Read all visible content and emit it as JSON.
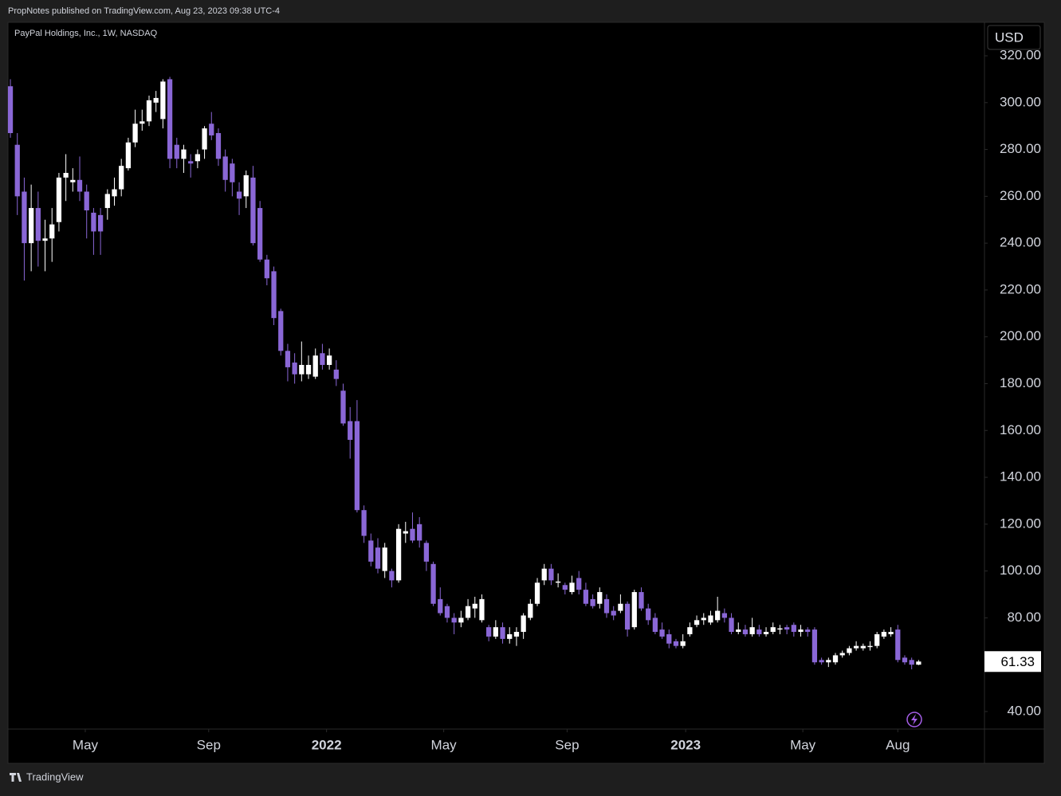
{
  "header": "PropNotes published on TradingView.com, Aug 23, 2023 09:38 UTC-4",
  "footer": "TradingView",
  "chart_data": {
    "type": "candlestick",
    "title": "PayPal Holdings, Inc., 1W, NASDAQ",
    "currency": "USD",
    "up_color": "#ffffff",
    "down_color": "#8a67d6",
    "open": [
      307,
      282,
      262,
      240,
      255,
      241,
      242,
      249,
      268,
      266,
      267,
      262,
      253,
      252,
      255,
      260,
      263,
      272,
      283,
      291,
      292,
      300,
      293,
      310,
      282,
      276,
      275,
      275,
      280,
      291,
      287,
      277,
      274,
      262,
      260,
      268,
      255,
      233,
      228,
      211,
      194,
      189,
      184,
      184,
      183,
      193,
      188,
      186,
      177,
      164,
      164,
      126,
      113,
      110,
      100,
      100,
      96,
      116,
      118,
      120,
      112,
      103,
      88,
      85,
      80,
      78,
      80,
      84,
      79,
      76,
      72,
      76,
      71,
      72,
      74,
      80,
      86,
      96,
      101,
      95,
      94,
      91,
      97,
      92,
      88,
      86,
      88,
      83,
      83,
      86,
      76,
      91,
      84,
      80,
      75,
      73,
      70,
      68,
      73,
      77,
      79,
      78,
      79,
      82,
      80,
      74,
      75,
      73,
      75,
      73,
      74,
      75,
      76,
      77,
      74,
      75,
      75,
      62,
      61,
      61,
      64,
      65,
      67,
      67,
      67.5,
      68,
      72,
      73,
      75,
      63,
      62,
      60
    ],
    "high": [
      310,
      287,
      268,
      265,
      262,
      250,
      255,
      270,
      278,
      272,
      277,
      265,
      255,
      255,
      263,
      268,
      276,
      285,
      297,
      297,
      303,
      305,
      310,
      311,
      285,
      282,
      278,
      280,
      290,
      296,
      289,
      280,
      276,
      266,
      271,
      273,
      258,
      235,
      230,
      212,
      197,
      193,
      198,
      192,
      195,
      197,
      195,
      190,
      180,
      170,
      173,
      128,
      116,
      114,
      112,
      101,
      120,
      121,
      125,
      123,
      113,
      104,
      93,
      86,
      82,
      83,
      88,
      89,
      90,
      77,
      79,
      78,
      76,
      76,
      82,
      88,
      97,
      103,
      103,
      99,
      95,
      98,
      100,
      95,
      90,
      93,
      90,
      85,
      90,
      87,
      92,
      93,
      86,
      82,
      78,
      75,
      71,
      73,
      78,
      81,
      82,
      83,
      89,
      84,
      82,
      78,
      77,
      80,
      77,
      76,
      78,
      77,
      77,
      78,
      77,
      76,
      76,
      63,
      63,
      65,
      66,
      68,
      70,
      69,
      70,
      74,
      75,
      76,
      77,
      64,
      63,
      62
    ],
    "low": [
      285,
      252,
      224,
      228,
      230,
      228,
      232,
      245,
      258,
      262,
      258,
      242,
      235,
      235,
      250,
      256,
      260,
      271,
      281,
      288,
      290,
      296,
      289,
      272,
      272,
      270,
      268,
      272,
      276,
      284,
      273,
      262,
      260,
      252,
      255,
      239,
      232,
      222,
      205,
      192,
      181,
      180,
      181,
      182,
      182,
      186,
      186,
      179,
      162,
      148,
      125,
      112,
      102,
      99,
      97,
      93,
      95,
      112,
      112,
      110,
      100,
      85,
      81,
      78,
      73,
      76,
      79,
      80,
      78,
      70,
      71,
      69,
      69,
      68,
      71,
      79,
      85,
      94,
      94,
      93,
      90,
      90,
      90,
      85,
      84,
      84,
      80,
      79,
      82,
      72,
      75,
      83,
      77,
      73,
      71,
      67,
      67,
      67,
      72,
      76,
      77,
      77,
      78,
      78,
      73,
      73,
      72,
      72,
      72,
      72,
      73,
      73,
      73,
      72,
      72,
      72,
      60,
      60,
      59,
      60,
      63,
      64,
      66,
      66,
      66,
      67,
      71,
      72,
      61,
      60,
      58,
      59.8
    ],
    "close": [
      287,
      260,
      240,
      255,
      241,
      242,
      248,
      268,
      270,
      267,
      262,
      254,
      245,
      245,
      261,
      263,
      273,
      283,
      291,
      292,
      301,
      302,
      309,
      276,
      276,
      280,
      274,
      278,
      289,
      286,
      276,
      267,
      266,
      259,
      269,
      240,
      233,
      225,
      208,
      194,
      187,
      184,
      188,
      188,
      192,
      188,
      192,
      182,
      163,
      156,
      126,
      115,
      104,
      101,
      110,
      96,
      118,
      117,
      113,
      113,
      104,
      86,
      82,
      80,
      78,
      80,
      85,
      86,
      88,
      72,
      76,
      71,
      73,
      74,
      81,
      86,
      95,
      101,
      96,
      95.5,
      92,
      95,
      92,
      86,
      85,
      91,
      82,
      81,
      86,
      75,
      91,
      84,
      79,
      74,
      72,
      69,
      68,
      70,
      76,
      79,
      80,
      81,
      83,
      80,
      74,
      75,
      73,
      76,
      73,
      74,
      76,
      75.5,
      75,
      74,
      75,
      74,
      61,
      61,
      62,
      64,
      65,
      67,
      68,
      68,
      68,
      73,
      74,
      74,
      62,
      61,
      60,
      61.33
    ],
    "last_price": {
      "value": 61.33,
      "label": "61.33"
    },
    "xlim": [
      -0.35,
      140.5
    ],
    "xticks": [
      {
        "value": 10.8,
        "label": "May"
      },
      {
        "value": 28.6,
        "label": "Sep"
      },
      {
        "value": 45.6,
        "label": "2022"
      },
      {
        "value": 62.5,
        "label": "May"
      },
      {
        "value": 80.3,
        "label": "Sep"
      },
      {
        "value": 97.4,
        "label": "2023"
      },
      {
        "value": 114.3,
        "label": "May"
      },
      {
        "value": 128,
        "label": "Aug"
      }
    ],
    "ylim": [
      32.5,
      334.3
    ],
    "yticks": [
      {
        "value": 40,
        "label": "40.00"
      },
      {
        "value": 80,
        "label": "80.00"
      },
      {
        "value": 100,
        "label": "100.00"
      },
      {
        "value": 120,
        "label": "120.00"
      },
      {
        "value": 140,
        "label": "140.00"
      },
      {
        "value": 160,
        "label": "160.00"
      },
      {
        "value": 180,
        "label": "180.00"
      },
      {
        "value": 200,
        "label": "200.00"
      },
      {
        "value": 220,
        "label": "220.00"
      },
      {
        "value": 240,
        "label": "240.00"
      },
      {
        "value": 260,
        "label": "260.00"
      },
      {
        "value": 280,
        "label": "280.00"
      },
      {
        "value": 300,
        "label": "300.00"
      },
      {
        "value": 320,
        "label": "320.00"
      }
    ],
    "grid": false
  }
}
